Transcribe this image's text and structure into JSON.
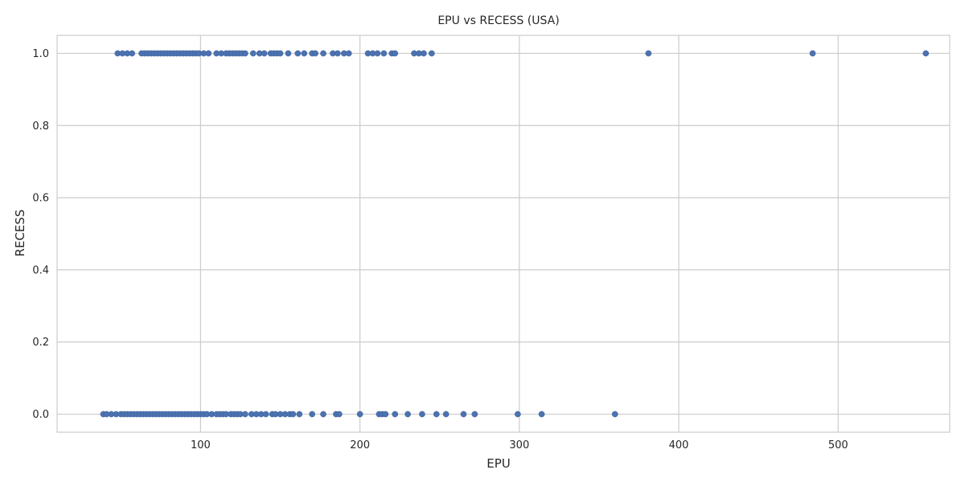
{
  "chart_data": {
    "type": "scatter",
    "title": "EPU vs RECESS (USA)",
    "xlabel": "EPU",
    "ylabel": "RECESS",
    "xlim": [
      10,
      570
    ],
    "ylim": [
      -0.05,
      1.05
    ],
    "xticks": [
      100,
      200,
      300,
      400,
      500
    ],
    "yticks": [
      0.0,
      0.2,
      0.4,
      0.6,
      0.8,
      1.0
    ],
    "xtick_labels": [
      "100",
      "200",
      "300",
      "400",
      "500"
    ],
    "ytick_labels": [
      "0.0",
      "0.2",
      "0.4",
      "0.6",
      "0.8",
      "1.0"
    ],
    "grid": true,
    "series": [
      {
        "color": "#4c72b0",
        "points": [
          {
            "x": 48,
            "y": 1
          },
          {
            "x": 51,
            "y": 1
          },
          {
            "x": 54,
            "y": 1
          },
          {
            "x": 57,
            "y": 1
          },
          {
            "x": 63,
            "y": 1
          },
          {
            "x": 65,
            "y": 1
          },
          {
            "x": 67,
            "y": 1
          },
          {
            "x": 69,
            "y": 1
          },
          {
            "x": 71,
            "y": 1
          },
          {
            "x": 73,
            "y": 1
          },
          {
            "x": 75,
            "y": 1
          },
          {
            "x": 77,
            "y": 1
          },
          {
            "x": 79,
            "y": 1
          },
          {
            "x": 81,
            "y": 1
          },
          {
            "x": 83,
            "y": 1
          },
          {
            "x": 85,
            "y": 1
          },
          {
            "x": 87,
            "y": 1
          },
          {
            "x": 89,
            "y": 1
          },
          {
            "x": 91,
            "y": 1
          },
          {
            "x": 93,
            "y": 1
          },
          {
            "x": 95,
            "y": 1
          },
          {
            "x": 97,
            "y": 1
          },
          {
            "x": 99,
            "y": 1
          },
          {
            "x": 102,
            "y": 1
          },
          {
            "x": 105,
            "y": 1
          },
          {
            "x": 110,
            "y": 1
          },
          {
            "x": 113,
            "y": 1
          },
          {
            "x": 116,
            "y": 1
          },
          {
            "x": 118,
            "y": 1
          },
          {
            "x": 120,
            "y": 1
          },
          {
            "x": 122,
            "y": 1
          },
          {
            "x": 124,
            "y": 1
          },
          {
            "x": 126,
            "y": 1
          },
          {
            "x": 128,
            "y": 1
          },
          {
            "x": 133,
            "y": 1
          },
          {
            "x": 137,
            "y": 1
          },
          {
            "x": 140,
            "y": 1
          },
          {
            "x": 144,
            "y": 1
          },
          {
            "x": 146,
            "y": 1
          },
          {
            "x": 148,
            "y": 1
          },
          {
            "x": 150,
            "y": 1
          },
          {
            "x": 155,
            "y": 1
          },
          {
            "x": 161,
            "y": 1
          },
          {
            "x": 165,
            "y": 1
          },
          {
            "x": 170,
            "y": 1
          },
          {
            "x": 172,
            "y": 1
          },
          {
            "x": 177,
            "y": 1
          },
          {
            "x": 183,
            "y": 1
          },
          {
            "x": 186,
            "y": 1
          },
          {
            "x": 190,
            "y": 1
          },
          {
            "x": 193,
            "y": 1
          },
          {
            "x": 205,
            "y": 1
          },
          {
            "x": 208,
            "y": 1
          },
          {
            "x": 211,
            "y": 1
          },
          {
            "x": 215,
            "y": 1
          },
          {
            "x": 220,
            "y": 1
          },
          {
            "x": 222,
            "y": 1
          },
          {
            "x": 234,
            "y": 1
          },
          {
            "x": 237,
            "y": 1
          },
          {
            "x": 240,
            "y": 1
          },
          {
            "x": 245,
            "y": 1
          },
          {
            "x": 381,
            "y": 1
          },
          {
            "x": 484,
            "y": 1
          },
          {
            "x": 555,
            "y": 1
          },
          {
            "x": 39,
            "y": 0
          },
          {
            "x": 41,
            "y": 0
          },
          {
            "x": 44,
            "y": 0
          },
          {
            "x": 47,
            "y": 0
          },
          {
            "x": 50,
            "y": 0
          },
          {
            "x": 52,
            "y": 0
          },
          {
            "x": 54,
            "y": 0
          },
          {
            "x": 56,
            "y": 0
          },
          {
            "x": 58,
            "y": 0
          },
          {
            "x": 60,
            "y": 0
          },
          {
            "x": 62,
            "y": 0
          },
          {
            "x": 64,
            "y": 0
          },
          {
            "x": 66,
            "y": 0
          },
          {
            "x": 68,
            "y": 0
          },
          {
            "x": 70,
            "y": 0
          },
          {
            "x": 72,
            "y": 0
          },
          {
            "x": 74,
            "y": 0
          },
          {
            "x": 76,
            "y": 0
          },
          {
            "x": 78,
            "y": 0
          },
          {
            "x": 80,
            "y": 0
          },
          {
            "x": 82,
            "y": 0
          },
          {
            "x": 84,
            "y": 0
          },
          {
            "x": 86,
            "y": 0
          },
          {
            "x": 88,
            "y": 0
          },
          {
            "x": 90,
            "y": 0
          },
          {
            "x": 92,
            "y": 0
          },
          {
            "x": 94,
            "y": 0
          },
          {
            "x": 96,
            "y": 0
          },
          {
            "x": 98,
            "y": 0
          },
          {
            "x": 100,
            "y": 0
          },
          {
            "x": 102,
            "y": 0
          },
          {
            "x": 104,
            "y": 0
          },
          {
            "x": 107,
            "y": 0
          },
          {
            "x": 110,
            "y": 0
          },
          {
            "x": 112,
            "y": 0
          },
          {
            "x": 114,
            "y": 0
          },
          {
            "x": 116,
            "y": 0
          },
          {
            "x": 119,
            "y": 0
          },
          {
            "x": 121,
            "y": 0
          },
          {
            "x": 123,
            "y": 0
          },
          {
            "x": 125,
            "y": 0
          },
          {
            "x": 128,
            "y": 0
          },
          {
            "x": 132,
            "y": 0
          },
          {
            "x": 135,
            "y": 0
          },
          {
            "x": 138,
            "y": 0
          },
          {
            "x": 141,
            "y": 0
          },
          {
            "x": 145,
            "y": 0
          },
          {
            "x": 147,
            "y": 0
          },
          {
            "x": 150,
            "y": 0
          },
          {
            "x": 153,
            "y": 0
          },
          {
            "x": 156,
            "y": 0
          },
          {
            "x": 158,
            "y": 0
          },
          {
            "x": 162,
            "y": 0
          },
          {
            "x": 170,
            "y": 0
          },
          {
            "x": 177,
            "y": 0
          },
          {
            "x": 185,
            "y": 0
          },
          {
            "x": 187,
            "y": 0
          },
          {
            "x": 200,
            "y": 0
          },
          {
            "x": 212,
            "y": 0
          },
          {
            "x": 214,
            "y": 0
          },
          {
            "x": 216,
            "y": 0
          },
          {
            "x": 222,
            "y": 0
          },
          {
            "x": 230,
            "y": 0
          },
          {
            "x": 239,
            "y": 0
          },
          {
            "x": 248,
            "y": 0
          },
          {
            "x": 254,
            "y": 0
          },
          {
            "x": 265,
            "y": 0
          },
          {
            "x": 272,
            "y": 0
          },
          {
            "x": 299,
            "y": 0
          },
          {
            "x": 314,
            "y": 0
          },
          {
            "x": 360,
            "y": 0
          }
        ]
      }
    ]
  }
}
